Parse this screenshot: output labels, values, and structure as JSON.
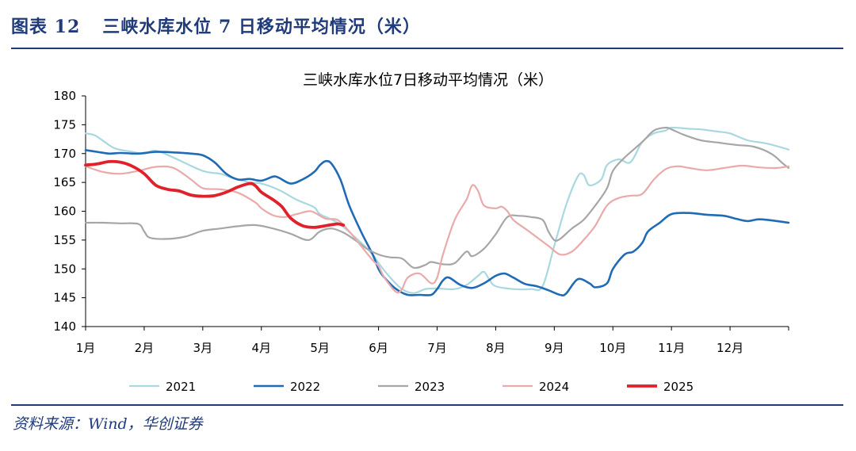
{
  "figure": {
    "number": "图表 12",
    "title": "三峡水库水位 7 日移动平均情况（米）",
    "source": "资料来源：Wind，华创证券"
  },
  "chart_data": {
    "type": "line",
    "title": "三峡水库水位7日移动平均情况（米）",
    "xlabel": "",
    "ylabel": "",
    "x_ticks": [
      "1月",
      "2月",
      "3月",
      "4月",
      "5月",
      "6月",
      "7月",
      "8月",
      "9月",
      "10月",
      "11月",
      "12月"
    ],
    "x_range": [
      1,
      13
    ],
    "ylim": [
      140,
      180
    ],
    "y_ticks": [
      140,
      145,
      150,
      155,
      160,
      165,
      170,
      175,
      180
    ],
    "grid": false,
    "legend_position": "bottom",
    "x_unit": "month (1 = 1月 start)",
    "series": [
      {
        "name": "2021",
        "color": "#a8d8e0",
        "width": 2.2,
        "points": [
          [
            1.0,
            173.5
          ],
          [
            1.15,
            173.2
          ],
          [
            1.3,
            172.2
          ],
          [
            1.5,
            170.9
          ],
          [
            1.8,
            170.3
          ],
          [
            2.0,
            170.0
          ],
          [
            2.2,
            170.5
          ],
          [
            2.5,
            169.3
          ],
          [
            3.0,
            167.0
          ],
          [
            3.3,
            166.5
          ],
          [
            3.5,
            165.8
          ],
          [
            3.8,
            165.0
          ],
          [
            4.0,
            164.8
          ],
          [
            4.3,
            163.7
          ],
          [
            4.6,
            162.0
          ],
          [
            4.9,
            160.7
          ],
          [
            5.0,
            159.5
          ],
          [
            5.3,
            158.0
          ],
          [
            5.6,
            155.5
          ],
          [
            5.9,
            152.5
          ],
          [
            6.0,
            151.0
          ],
          [
            6.2,
            148.5
          ],
          [
            6.4,
            146.5
          ],
          [
            6.6,
            145.8
          ],
          [
            6.8,
            146.5
          ],
          [
            7.0,
            146.6
          ],
          [
            7.3,
            146.5
          ],
          [
            7.5,
            147.2
          ],
          [
            7.7,
            148.8
          ],
          [
            7.8,
            149.5
          ],
          [
            7.9,
            148.0
          ],
          [
            8.0,
            147.0
          ],
          [
            8.3,
            146.5
          ],
          [
            8.6,
            146.5
          ],
          [
            8.8,
            147.0
          ],
          [
            9.0,
            154.0
          ],
          [
            9.2,
            161.0
          ],
          [
            9.4,
            166.0
          ],
          [
            9.5,
            166.3
          ],
          [
            9.6,
            164.5
          ],
          [
            9.8,
            165.5
          ],
          [
            9.9,
            168.0
          ],
          [
            10.1,
            169.0
          ],
          [
            10.3,
            168.5
          ],
          [
            10.5,
            172.0
          ],
          [
            10.7,
            173.5
          ],
          [
            10.9,
            174.0
          ],
          [
            11.0,
            174.5
          ],
          [
            11.3,
            174.3
          ],
          [
            11.5,
            174.2
          ],
          [
            11.8,
            173.8
          ],
          [
            12.0,
            173.5
          ],
          [
            12.3,
            172.3
          ],
          [
            12.6,
            171.8
          ],
          [
            12.9,
            171.0
          ],
          [
            13.0,
            170.7
          ]
        ]
      },
      {
        "name": "2022",
        "color": "#1f6bb5",
        "width": 2.6,
        "points": [
          [
            1.0,
            170.6
          ],
          [
            1.2,
            170.3
          ],
          [
            1.4,
            170.0
          ],
          [
            1.6,
            170.1
          ],
          [
            1.9,
            170.0
          ],
          [
            2.2,
            170.3
          ],
          [
            2.5,
            170.2
          ],
          [
            2.8,
            170.0
          ],
          [
            3.0,
            169.7
          ],
          [
            3.2,
            168.5
          ],
          [
            3.4,
            166.5
          ],
          [
            3.6,
            165.5
          ],
          [
            3.8,
            165.6
          ],
          [
            4.0,
            165.3
          ],
          [
            4.2,
            166.0
          ],
          [
            4.3,
            165.8
          ],
          [
            4.5,
            164.8
          ],
          [
            4.7,
            165.5
          ],
          [
            4.9,
            166.8
          ],
          [
            5.0,
            168.0
          ],
          [
            5.1,
            168.7
          ],
          [
            5.2,
            168.2
          ],
          [
            5.35,
            165.5
          ],
          [
            5.5,
            161.0
          ],
          [
            5.7,
            156.5
          ],
          [
            5.9,
            152.5
          ],
          [
            6.0,
            150.0
          ],
          [
            6.1,
            148.5
          ],
          [
            6.3,
            146.5
          ],
          [
            6.5,
            145.5
          ],
          [
            6.7,
            145.5
          ],
          [
            6.9,
            145.5
          ],
          [
            7.0,
            146.5
          ],
          [
            7.1,
            148.0
          ],
          [
            7.2,
            148.5
          ],
          [
            7.4,
            147.2
          ],
          [
            7.6,
            146.7
          ],
          [
            7.8,
            147.5
          ],
          [
            8.0,
            148.8
          ],
          [
            8.15,
            149.2
          ],
          [
            8.3,
            148.5
          ],
          [
            8.5,
            147.4
          ],
          [
            8.7,
            147.0
          ],
          [
            8.9,
            146.3
          ],
          [
            9.1,
            145.5
          ],
          [
            9.2,
            145.7
          ],
          [
            9.4,
            148.2
          ],
          [
            9.6,
            147.5
          ],
          [
            9.7,
            146.8
          ],
          [
            9.9,
            147.5
          ],
          [
            10.0,
            150.0
          ],
          [
            10.2,
            152.5
          ],
          [
            10.35,
            153.0
          ],
          [
            10.5,
            154.5
          ],
          [
            10.6,
            156.5
          ],
          [
            10.8,
            158.0
          ],
          [
            11.0,
            159.5
          ],
          [
            11.3,
            159.7
          ],
          [
            11.6,
            159.4
          ],
          [
            11.9,
            159.2
          ],
          [
            12.1,
            158.7
          ],
          [
            12.3,
            158.3
          ],
          [
            12.5,
            158.6
          ],
          [
            12.8,
            158.3
          ],
          [
            13.0,
            158.0
          ]
        ]
      },
      {
        "name": "2023",
        "color": "#a6a6a6",
        "width": 2.2,
        "points": [
          [
            1.0,
            158.0
          ],
          [
            1.3,
            158.0
          ],
          [
            1.6,
            157.9
          ],
          [
            1.9,
            157.8
          ],
          [
            2.0,
            156.5
          ],
          [
            2.1,
            155.4
          ],
          [
            2.4,
            155.2
          ],
          [
            2.7,
            155.6
          ],
          [
            3.0,
            156.6
          ],
          [
            3.3,
            157.0
          ],
          [
            3.6,
            157.4
          ],
          [
            3.9,
            157.6
          ],
          [
            4.2,
            157.0
          ],
          [
            4.5,
            156.1
          ],
          [
            4.8,
            155.0
          ],
          [
            5.0,
            156.5
          ],
          [
            5.2,
            157.0
          ],
          [
            5.4,
            156.3
          ],
          [
            5.6,
            155.0
          ],
          [
            5.8,
            153.5
          ],
          [
            6.0,
            152.5
          ],
          [
            6.2,
            152.0
          ],
          [
            6.4,
            151.8
          ],
          [
            6.6,
            150.2
          ],
          [
            6.8,
            150.7
          ],
          [
            6.9,
            151.2
          ],
          [
            7.1,
            150.8
          ],
          [
            7.3,
            151.0
          ],
          [
            7.5,
            153.0
          ],
          [
            7.6,
            152.2
          ],
          [
            7.8,
            153.5
          ],
          [
            8.0,
            156.0
          ],
          [
            8.2,
            159.0
          ],
          [
            8.4,
            159.2
          ],
          [
            8.6,
            159.0
          ],
          [
            8.8,
            158.5
          ],
          [
            8.9,
            156.5
          ],
          [
            9.0,
            155.0
          ],
          [
            9.1,
            155.2
          ],
          [
            9.3,
            157.0
          ],
          [
            9.5,
            158.5
          ],
          [
            9.7,
            161.0
          ],
          [
            9.9,
            164.0
          ],
          [
            10.0,
            167.0
          ],
          [
            10.2,
            169.3
          ],
          [
            10.5,
            172.0
          ],
          [
            10.7,
            174.0
          ],
          [
            10.9,
            174.5
          ],
          [
            11.0,
            174.2
          ],
          [
            11.2,
            173.3
          ],
          [
            11.5,
            172.3
          ],
          [
            11.8,
            171.9
          ],
          [
            12.1,
            171.5
          ],
          [
            12.4,
            171.2
          ],
          [
            12.7,
            170.0
          ],
          [
            12.9,
            168.3
          ],
          [
            13.0,
            167.5
          ]
        ]
      },
      {
        "name": "2024",
        "color": "#eaaaa9",
        "width": 2.2,
        "points": [
          [
            1.0,
            167.8
          ],
          [
            1.3,
            166.8
          ],
          [
            1.6,
            166.5
          ],
          [
            1.9,
            167.0
          ],
          [
            2.2,
            167.7
          ],
          [
            2.5,
            167.5
          ],
          [
            2.8,
            165.5
          ],
          [
            3.0,
            164.0
          ],
          [
            3.3,
            163.8
          ],
          [
            3.6,
            163.2
          ],
          [
            3.9,
            161.5
          ],
          [
            4.0,
            160.5
          ],
          [
            4.2,
            159.3
          ],
          [
            4.4,
            159.0
          ],
          [
            4.6,
            159.5
          ],
          [
            4.8,
            160.0
          ],
          [
            4.9,
            159.8
          ],
          [
            5.1,
            158.7
          ],
          [
            5.3,
            158.5
          ],
          [
            5.5,
            156.5
          ],
          [
            5.7,
            154.0
          ],
          [
            5.9,
            151.5
          ],
          [
            6.0,
            150.5
          ],
          [
            6.1,
            148.5
          ],
          [
            6.3,
            146.0
          ],
          [
            6.4,
            146.5
          ],
          [
            6.5,
            148.5
          ],
          [
            6.7,
            149.2
          ],
          [
            6.9,
            147.5
          ],
          [
            7.0,
            148.5
          ],
          [
            7.1,
            152.5
          ],
          [
            7.3,
            158.5
          ],
          [
            7.5,
            162.0
          ],
          [
            7.6,
            164.5
          ],
          [
            7.7,
            163.5
          ],
          [
            7.8,
            161.0
          ],
          [
            8.0,
            160.5
          ],
          [
            8.1,
            160.8
          ],
          [
            8.2,
            160.0
          ],
          [
            8.3,
            158.5
          ],
          [
            8.5,
            157.0
          ],
          [
            8.7,
            155.5
          ],
          [
            8.9,
            154.0
          ],
          [
            9.1,
            152.5
          ],
          [
            9.3,
            153.0
          ],
          [
            9.5,
            155.0
          ],
          [
            9.7,
            157.5
          ],
          [
            9.9,
            161.0
          ],
          [
            10.1,
            162.3
          ],
          [
            10.3,
            162.7
          ],
          [
            10.5,
            163.0
          ],
          [
            10.7,
            165.5
          ],
          [
            10.9,
            167.3
          ],
          [
            11.1,
            167.8
          ],
          [
            11.3,
            167.5
          ],
          [
            11.6,
            167.1
          ],
          [
            11.9,
            167.5
          ],
          [
            12.2,
            167.9
          ],
          [
            12.5,
            167.6
          ],
          [
            12.8,
            167.5
          ],
          [
            13.0,
            167.8
          ]
        ]
      },
      {
        "name": "2025",
        "color": "#e0202b",
        "width": 3.8,
        "points": [
          [
            1.0,
            168.0
          ],
          [
            1.2,
            168.2
          ],
          [
            1.4,
            168.6
          ],
          [
            1.6,
            168.5
          ],
          [
            1.8,
            167.8
          ],
          [
            2.0,
            166.5
          ],
          [
            2.2,
            164.5
          ],
          [
            2.4,
            163.8
          ],
          [
            2.6,
            163.5
          ],
          [
            2.8,
            162.8
          ],
          [
            3.0,
            162.6
          ],
          [
            3.2,
            162.7
          ],
          [
            3.4,
            163.3
          ],
          [
            3.6,
            164.2
          ],
          [
            3.8,
            164.8
          ],
          [
            3.9,
            164.4
          ],
          [
            4.0,
            163.3
          ],
          [
            4.2,
            162.0
          ],
          [
            4.35,
            160.8
          ],
          [
            4.5,
            158.8
          ],
          [
            4.7,
            157.5
          ],
          [
            4.9,
            157.2
          ],
          [
            5.1,
            157.5
          ],
          [
            5.3,
            157.8
          ],
          [
            5.4,
            157.6
          ]
        ]
      }
    ]
  }
}
